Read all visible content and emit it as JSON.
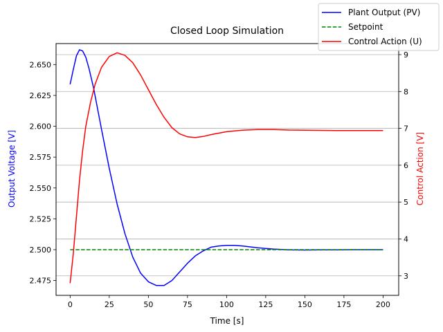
{
  "chart_data": {
    "type": "line",
    "title": "Closed Loop Simulation",
    "xlabel": "Time [s]",
    "ylabel_left": "Output Voltage [V]",
    "ylabel_right": "Control Action [V]",
    "xlim": [
      -9,
      210
    ],
    "ylim_left": [
      2.463,
      2.667
    ],
    "ylim_right": [
      2.47,
      9.3
    ],
    "x_ticks": [
      0,
      25,
      50,
      75,
      100,
      125,
      150,
      175,
      200
    ],
    "y_ticks_left": [
      2.475,
      2.5,
      2.525,
      2.55,
      2.575,
      2.6,
      2.625,
      2.65
    ],
    "y_ticks_right": [
      3,
      4,
      5,
      6,
      7,
      8,
      9
    ],
    "grid": "horizontal lines at right-axis ticks",
    "legend_position": "top-right, outside axes",
    "series": [
      {
        "name": "Plant Output (PV)",
        "axis": "left",
        "color": "#0000ff",
        "style": "solid",
        "points": [
          [
            0,
            2.634
          ],
          [
            2,
            2.646
          ],
          [
            4,
            2.657
          ],
          [
            6,
            2.662
          ],
          [
            8,
            2.661
          ],
          [
            10,
            2.656
          ],
          [
            12,
            2.647
          ],
          [
            15,
            2.631
          ],
          [
            20,
            2.598
          ],
          [
            25,
            2.566
          ],
          [
            30,
            2.537
          ],
          [
            35,
            2.513
          ],
          [
            40,
            2.494
          ],
          [
            45,
            2.481
          ],
          [
            50,
            2.474
          ],
          [
            55,
            2.471
          ],
          [
            60,
            2.471
          ],
          [
            65,
            2.475
          ],
          [
            70,
            2.482
          ],
          [
            75,
            2.489
          ],
          [
            80,
            2.495
          ],
          [
            85,
            2.499
          ],
          [
            90,
            2.502
          ],
          [
            95,
            2.503
          ],
          [
            100,
            2.5035
          ],
          [
            105,
            2.5035
          ],
          [
            110,
            2.503
          ],
          [
            120,
            2.5015
          ],
          [
            130,
            2.5005
          ],
          [
            140,
            2.4998
          ],
          [
            150,
            2.4997
          ],
          [
            160,
            2.4998
          ],
          [
            170,
            2.4999
          ],
          [
            180,
            2.5
          ],
          [
            190,
            2.5
          ],
          [
            200,
            2.5
          ]
        ]
      },
      {
        "name": "Setpoint",
        "axis": "left",
        "color": "#008000",
        "style": "dashed",
        "points": [
          [
            0,
            2.5
          ],
          [
            200,
            2.5
          ]
        ]
      },
      {
        "name": "Control Action (U)",
        "axis": "right",
        "color": "#ff0000",
        "style": "solid",
        "points": [
          [
            0,
            2.8
          ],
          [
            2,
            3.6
          ],
          [
            4,
            4.6
          ],
          [
            6,
            5.6
          ],
          [
            8,
            6.4
          ],
          [
            10,
            7.05
          ],
          [
            13,
            7.7
          ],
          [
            16,
            8.2
          ],
          [
            20,
            8.65
          ],
          [
            25,
            8.95
          ],
          [
            30,
            9.05
          ],
          [
            35,
            8.98
          ],
          [
            40,
            8.78
          ],
          [
            45,
            8.45
          ],
          [
            50,
            8.05
          ],
          [
            55,
            7.65
          ],
          [
            60,
            7.3
          ],
          [
            65,
            7.02
          ],
          [
            70,
            6.85
          ],
          [
            75,
            6.77
          ],
          [
            80,
            6.75
          ],
          [
            85,
            6.78
          ],
          [
            90,
            6.83
          ],
          [
            100,
            6.91
          ],
          [
            110,
            6.95
          ],
          [
            120,
            6.97
          ],
          [
            130,
            6.97
          ],
          [
            140,
            6.955
          ],
          [
            150,
            6.95
          ],
          [
            160,
            6.945
          ],
          [
            170,
            6.94
          ],
          [
            180,
            6.94
          ],
          [
            190,
            6.94
          ],
          [
            200,
            6.94
          ]
        ]
      }
    ]
  }
}
